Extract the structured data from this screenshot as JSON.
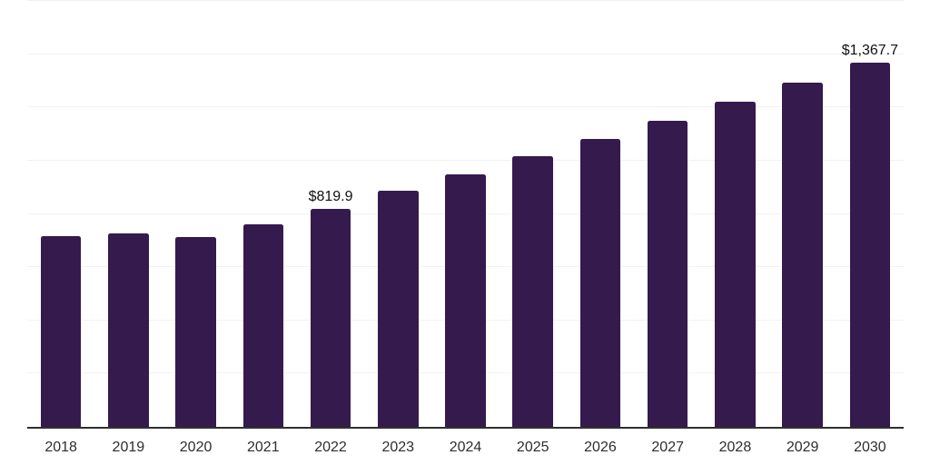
{
  "chart_data": {
    "type": "bar",
    "title": "",
    "xlabel": "",
    "ylabel": "",
    "categories": [
      "2018",
      "2019",
      "2020",
      "2021",
      "2022",
      "2023",
      "2024",
      "2025",
      "2026",
      "2027",
      "2028",
      "2029",
      "2030"
    ],
    "values": [
      716.4,
      726.6,
      714.7,
      760.8,
      819.9,
      887.0,
      949.4,
      1016.6,
      1081.4,
      1150.6,
      1222.3,
      1293.9,
      1367.7
    ],
    "data_labels": [
      "",
      "",
      "",
      "",
      "$819.9",
      "",
      "",
      "",
      "",
      "",
      "",
      "",
      "$1,367.7"
    ],
    "ylim": [
      0,
      1600
    ],
    "grid_step": 200,
    "grid": "horizontal",
    "y_tick_labels_visible": false,
    "legend_position": "none",
    "colors": {
      "bar": "#351a4e",
      "axis_line": "#303030",
      "gridline": "#f2f2f2",
      "data_label": "#111111",
      "tick_label": "#2d2d2d",
      "background": "#ffffff"
    }
  }
}
